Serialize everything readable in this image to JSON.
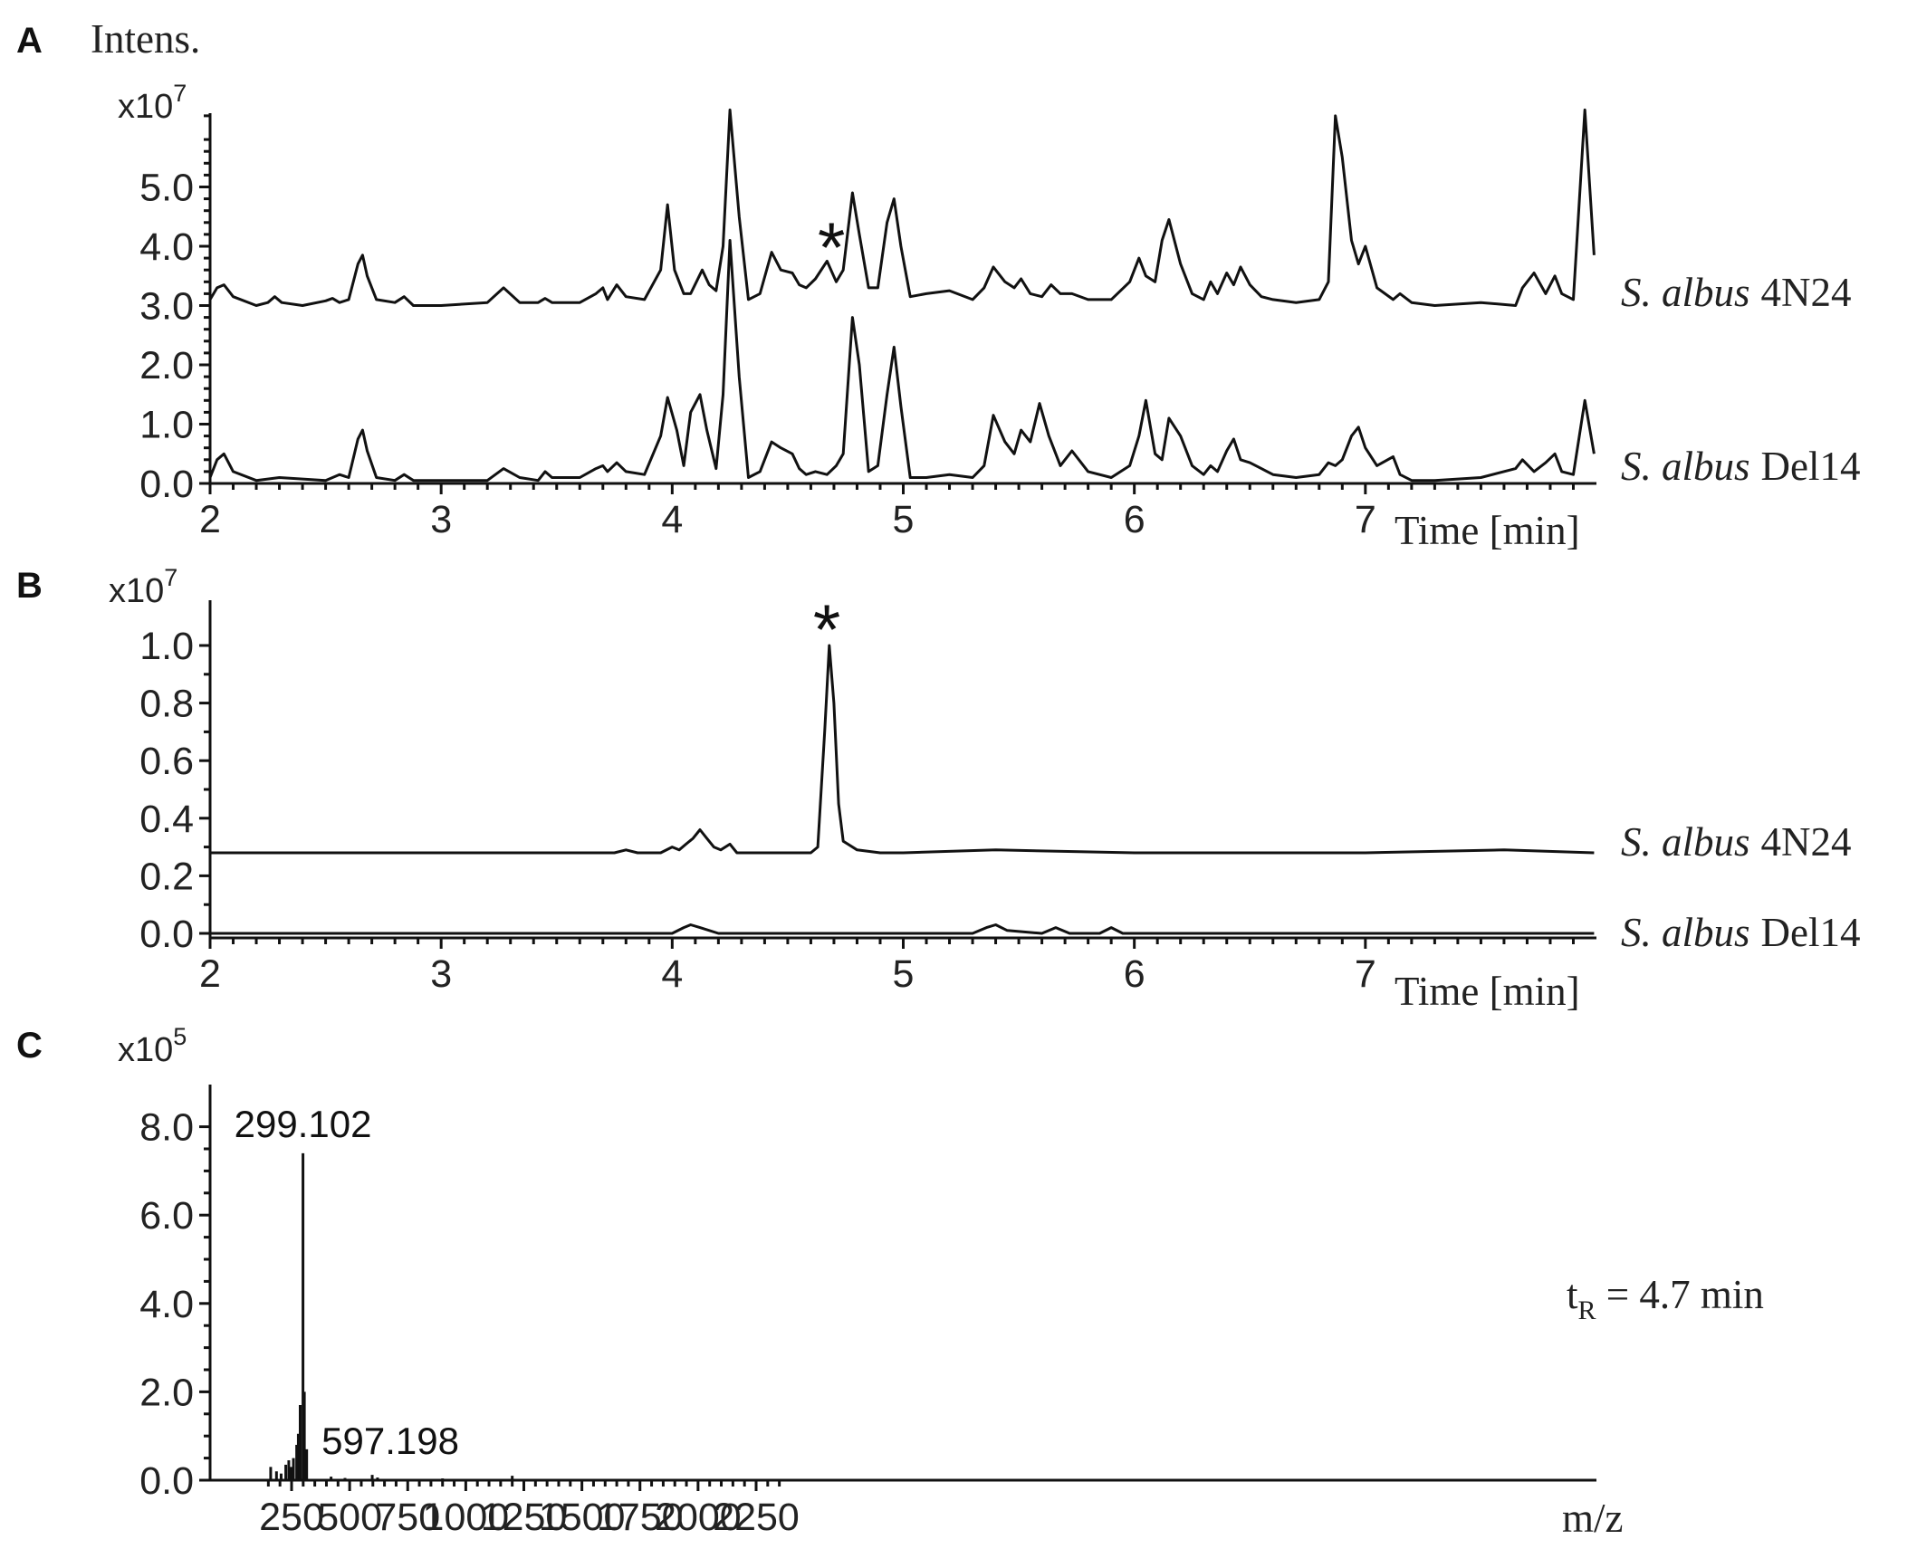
{
  "chart_data": [
    {
      "panel": "A",
      "type": "line",
      "y_title": "Intens.",
      "y_scale_label": "x10",
      "y_scale_exp": "7",
      "x_unit_label": "Time [min]",
      "x_ticks": [
        "2",
        "3",
        "4",
        "5",
        "6",
        "7"
      ],
      "y_ticks": [
        "0.0",
        "1.0",
        "2.0",
        "3.0",
        "4.0",
        "5.0"
      ],
      "xlim": [
        2,
        8.0
      ],
      "ylim": [
        0,
        6.4
      ],
      "star_at": 4.7,
      "series": [
        {
          "label_italic": "S. albus",
          "label_strain": "4N24",
          "x": [
            2.0,
            2.03,
            2.06,
            2.1,
            2.2,
            2.25,
            2.28,
            2.31,
            2.4,
            2.5,
            2.53,
            2.56,
            2.6,
            2.64,
            2.66,
            2.68,
            2.72,
            2.8,
            2.84,
            2.88,
            3.0,
            3.2,
            3.27,
            3.34,
            3.42,
            3.45,
            3.48,
            3.6,
            3.67,
            3.7,
            3.72,
            3.76,
            3.8,
            3.88,
            3.95,
            3.98,
            4.01,
            4.05,
            4.08,
            4.13,
            4.16,
            4.19,
            4.22,
            4.25,
            4.29,
            4.33,
            4.38,
            4.43,
            4.47,
            4.52,
            4.55,
            4.58,
            4.62,
            4.67,
            4.71,
            4.74,
            4.78,
            4.81,
            4.85,
            4.89,
            4.93,
            4.96,
            4.99,
            5.03,
            5.1,
            5.2,
            5.3,
            5.35,
            5.39,
            5.44,
            5.48,
            5.51,
            5.55,
            5.6,
            5.64,
            5.68,
            5.73,
            5.8,
            5.9,
            5.98,
            6.02,
            6.05,
            6.09,
            6.12,
            6.15,
            6.2,
            6.25,
            6.3,
            6.33,
            6.36,
            6.4,
            6.43,
            6.46,
            6.5,
            6.55,
            6.6,
            6.7,
            6.8,
            6.84,
            6.87,
            6.9,
            6.94,
            6.97,
            7.0,
            7.05,
            7.12,
            7.15,
            7.2,
            7.3,
            7.5,
            7.65,
            7.68,
            7.73,
            7.78,
            7.82,
            7.85,
            7.9,
            7.95,
            7.99
          ],
          "y": [
            3.1,
            3.3,
            3.35,
            3.15,
            3.0,
            3.05,
            3.15,
            3.05,
            3.0,
            3.08,
            3.12,
            3.05,
            3.1,
            3.7,
            3.85,
            3.5,
            3.1,
            3.05,
            3.15,
            3.0,
            3.0,
            3.05,
            3.3,
            3.05,
            3.05,
            3.12,
            3.05,
            3.05,
            3.2,
            3.3,
            3.1,
            3.35,
            3.15,
            3.1,
            3.6,
            4.7,
            3.6,
            3.2,
            3.2,
            3.6,
            3.35,
            3.25,
            4.0,
            6.3,
            4.5,
            3.1,
            3.2,
            3.9,
            3.6,
            3.55,
            3.35,
            3.3,
            3.45,
            3.75,
            3.4,
            3.6,
            4.9,
            4.2,
            3.3,
            3.3,
            4.4,
            4.8,
            4.0,
            3.15,
            3.2,
            3.25,
            3.1,
            3.3,
            3.65,
            3.4,
            3.3,
            3.45,
            3.2,
            3.15,
            3.35,
            3.2,
            3.2,
            3.1,
            3.1,
            3.4,
            3.8,
            3.5,
            3.4,
            4.1,
            4.45,
            3.7,
            3.2,
            3.1,
            3.4,
            3.2,
            3.55,
            3.35,
            3.65,
            3.35,
            3.15,
            3.1,
            3.05,
            3.1,
            3.4,
            6.2,
            5.5,
            4.1,
            3.7,
            4.0,
            3.3,
            3.1,
            3.2,
            3.05,
            3.0,
            3.05,
            3.0,
            3.3,
            3.55,
            3.2,
            3.5,
            3.2,
            3.1,
            6.3,
            3.85
          ]
        },
        {
          "label_italic": "S. albus",
          "label_strain": "Del14",
          "x": [
            2.0,
            2.03,
            2.06,
            2.1,
            2.2,
            2.3,
            2.5,
            2.56,
            2.6,
            2.64,
            2.66,
            2.68,
            2.72,
            2.8,
            2.84,
            2.88,
            3.0,
            3.2,
            3.27,
            3.34,
            3.42,
            3.45,
            3.48,
            3.6,
            3.67,
            3.7,
            3.72,
            3.76,
            3.8,
            3.88,
            3.95,
            3.98,
            4.02,
            4.05,
            4.08,
            4.12,
            4.15,
            4.19,
            4.22,
            4.25,
            4.29,
            4.33,
            4.38,
            4.43,
            4.47,
            4.52,
            4.55,
            4.58,
            4.62,
            4.67,
            4.71,
            4.74,
            4.78,
            4.81,
            4.85,
            4.89,
            4.93,
            4.96,
            4.99,
            5.03,
            5.1,
            5.2,
            5.3,
            5.35,
            5.39,
            5.44,
            5.48,
            5.51,
            5.55,
            5.59,
            5.63,
            5.68,
            5.73,
            5.8,
            5.9,
            5.98,
            6.02,
            6.05,
            6.09,
            6.12,
            6.15,
            6.2,
            6.25,
            6.3,
            6.33,
            6.36,
            6.4,
            6.43,
            6.46,
            6.5,
            6.55,
            6.6,
            6.7,
            6.8,
            6.84,
            6.87,
            6.9,
            6.94,
            6.97,
            7.0,
            7.05,
            7.12,
            7.15,
            7.2,
            7.3,
            7.5,
            7.65,
            7.68,
            7.73,
            7.78,
            7.82,
            7.85,
            7.9,
            7.95,
            7.99
          ],
          "y": [
            0.1,
            0.4,
            0.5,
            0.2,
            0.05,
            0.1,
            0.05,
            0.15,
            0.1,
            0.75,
            0.9,
            0.55,
            0.1,
            0.05,
            0.15,
            0.05,
            0.05,
            0.05,
            0.25,
            0.1,
            0.05,
            0.2,
            0.1,
            0.1,
            0.25,
            0.3,
            0.2,
            0.35,
            0.2,
            0.15,
            0.8,
            1.45,
            0.9,
            0.3,
            1.2,
            1.5,
            0.9,
            0.25,
            1.5,
            4.1,
            1.8,
            0.1,
            0.2,
            0.7,
            0.6,
            0.5,
            0.25,
            0.15,
            0.2,
            0.15,
            0.3,
            0.5,
            2.8,
            2.0,
            0.2,
            0.3,
            1.5,
            2.3,
            1.3,
            0.1,
            0.1,
            0.15,
            0.1,
            0.3,
            1.15,
            0.7,
            0.5,
            0.9,
            0.7,
            1.35,
            0.8,
            0.3,
            0.55,
            0.2,
            0.1,
            0.3,
            0.8,
            1.4,
            0.5,
            0.4,
            1.1,
            0.8,
            0.3,
            0.15,
            0.3,
            0.2,
            0.55,
            0.75,
            0.4,
            0.35,
            0.25,
            0.15,
            0.1,
            0.15,
            0.35,
            0.3,
            0.4,
            0.8,
            0.95,
            0.6,
            0.3,
            0.45,
            0.15,
            0.05,
            0.05,
            0.1,
            0.25,
            0.4,
            0.2,
            0.35,
            0.5,
            0.2,
            0.15,
            1.4,
            0.5
          ]
        }
      ]
    },
    {
      "panel": "B",
      "type": "line",
      "y_scale_label": "x10",
      "y_scale_exp": "7",
      "x_unit_label": "Time [min]",
      "x_ticks": [
        "2",
        "3",
        "4",
        "5",
        "6",
        "7"
      ],
      "y_ticks": [
        "0.0",
        "0.2",
        "0.4",
        "0.6",
        "0.8",
        "1.0"
      ],
      "xlim": [
        2,
        8.0
      ],
      "ylim": [
        -0.02,
        1.12
      ],
      "star_at": 4.68,
      "series": [
        {
          "label_italic": "S. albus",
          "label_strain": "4N24",
          "x": [
            2.0,
            2.5,
            3.0,
            3.5,
            3.75,
            3.8,
            3.85,
            3.95,
            4.0,
            4.03,
            4.06,
            4.09,
            4.12,
            4.15,
            4.18,
            4.21,
            4.25,
            4.28,
            4.4,
            4.55,
            4.6,
            4.63,
            4.66,
            4.68,
            4.7,
            4.72,
            4.74,
            4.76,
            4.8,
            4.9,
            5.0,
            5.4,
            6.0,
            6.6,
            7.0,
            7.6,
            7.99
          ],
          "y": [
            0.28,
            0.28,
            0.28,
            0.28,
            0.28,
            0.29,
            0.28,
            0.28,
            0.3,
            0.29,
            0.31,
            0.33,
            0.36,
            0.33,
            0.3,
            0.29,
            0.31,
            0.28,
            0.28,
            0.28,
            0.28,
            0.3,
            0.7,
            1.0,
            0.8,
            0.45,
            0.32,
            0.31,
            0.29,
            0.28,
            0.28,
            0.29,
            0.28,
            0.28,
            0.28,
            0.29,
            0.28
          ]
        },
        {
          "label_italic": "S. albus",
          "label_strain": "Del14",
          "x": [
            2.0,
            2.5,
            3.0,
            3.5,
            4.0,
            4.05,
            4.08,
            4.12,
            4.2,
            4.6,
            5.0,
            5.3,
            5.36,
            5.4,
            5.45,
            5.6,
            5.66,
            5.72,
            5.85,
            5.9,
            5.95,
            6.4,
            6.8,
            7.2,
            7.6,
            7.99
          ],
          "y": [
            0.0,
            0.0,
            0.0,
            0.0,
            0.0,
            0.02,
            0.03,
            0.02,
            0.0,
            0.0,
            0.0,
            0.0,
            0.02,
            0.03,
            0.01,
            0.0,
            0.02,
            0.0,
            0.0,
            0.02,
            0.0,
            0.0,
            0.0,
            0.0,
            0.0,
            0.0
          ]
        }
      ]
    },
    {
      "panel": "C",
      "type": "bar",
      "y_scale_label": "x10",
      "y_scale_exp": "5",
      "x_unit_label": "m/z",
      "x_ticks": [
        "250",
        "500",
        "750",
        "1000",
        "1250",
        "1500",
        "1750",
        "2000",
        "2250"
      ],
      "y_ticks": [
        "0.0",
        "2.0",
        "4.0",
        "6.0",
        "8.0"
      ],
      "xlim": [
        135,
        2350
      ],
      "ylim": [
        0,
        8.4
      ],
      "retention_main": "t",
      "retention_sub": "R",
      "retention_rest": " = 4.7 min",
      "peak_labels": [
        {
          "mz": 299.102,
          "text": "299.102"
        },
        {
          "mz": 597.198,
          "text": "597.198"
        }
      ],
      "mz": [
        160,
        185,
        205,
        225,
        238,
        248,
        258,
        272,
        279,
        287,
        299.102,
        305,
        315,
        420,
        480,
        597.198,
        620,
        900,
        1200
      ],
      "intensity": [
        0.3,
        0.2,
        0.15,
        0.35,
        0.45,
        0.3,
        0.5,
        0.8,
        1.05,
        1.7,
        7.4,
        2.0,
        0.7,
        0.08,
        0.05,
        0.12,
        0.06,
        0.04,
        0.1
      ]
    }
  ]
}
